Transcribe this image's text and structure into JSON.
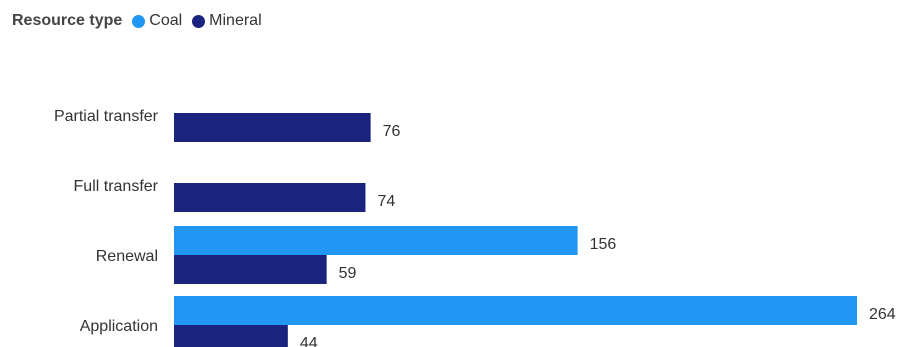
{
  "legend": {
    "title": "Resource type",
    "items": [
      {
        "name": "Coal",
        "color": "#2196F3"
      },
      {
        "name": "Mineral",
        "color": "#1A237E"
      }
    ]
  },
  "chart_data": {
    "type": "bar",
    "orientation": "horizontal",
    "categories": [
      "Partial transfer",
      "Full transfer",
      "Renewal",
      "Application"
    ],
    "series": [
      {
        "name": "Coal",
        "color": "#2196F3",
        "values": [
          null,
          null,
          156,
          264
        ]
      },
      {
        "name": "Mineral",
        "color": "#1A237E",
        "values": [
          76,
          74,
          59,
          44
        ]
      }
    ],
    "xlim": [
      0,
      264
    ],
    "grid": false,
    "legend_position": "top-left",
    "data_labels": true
  }
}
